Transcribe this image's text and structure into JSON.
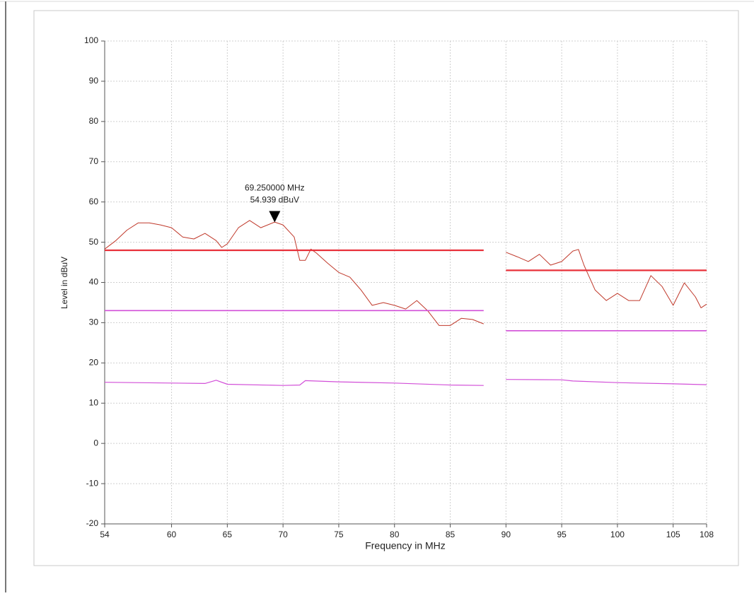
{
  "chart_data": {
    "type": "line",
    "xlabel": "Frequency in MHz",
    "ylabel": "Level in dBuV",
    "xlim": [
      54,
      108
    ],
    "ylim": [
      -20,
      100
    ],
    "xticks": [
      54,
      60,
      65,
      70,
      75,
      80,
      85,
      90,
      95,
      100,
      105,
      108
    ],
    "yticks": [
      -20,
      -10,
      0,
      10,
      20,
      30,
      40,
      50,
      60,
      70,
      80,
      90,
      100
    ],
    "grid": true,
    "series": [
      {
        "color": "#c0392b",
        "width": 1,
        "x": [
          54,
          55,
          56,
          57,
          58,
          59,
          60,
          61,
          62,
          63,
          64,
          64.5,
          65,
          66,
          67,
          68,
          69.25,
          70,
          71,
          71.5,
          72,
          72.5,
          73,
          74,
          75,
          76,
          77,
          78,
          79,
          80,
          81,
          82,
          83,
          84,
          85,
          86,
          87,
          88
        ],
        "values": [
          48.3,
          50.4,
          53,
          54.8,
          54.8,
          54.3,
          53.6,
          51.3,
          50.8,
          52.2,
          50.4,
          48.7,
          49.6,
          53.6,
          55.4,
          53.6,
          55,
          54.3,
          51.3,
          45.5,
          45.5,
          48.3,
          47.3,
          44.8,
          42.5,
          41.3,
          38.1,
          34.3,
          35,
          34.3,
          33.4,
          35.5,
          32.9,
          29.3,
          29.3,
          31.1,
          30.8,
          29.7
        ]
      },
      {
        "color": "#c0392b",
        "width": 1,
        "x": [
          90,
          91,
          92,
          93,
          94,
          95,
          96,
          96.5,
          97,
          98,
          99,
          100,
          101,
          102,
          103,
          104,
          105,
          106,
          107,
          107.5,
          108
        ],
        "values": [
          47.5,
          46.4,
          45.2,
          47,
          44.3,
          45.2,
          47.8,
          48.2,
          44.3,
          38.1,
          35.5,
          37.3,
          35.5,
          35.5,
          41.7,
          39,
          34.3,
          39.9,
          36.4,
          33.7,
          34.6
        ]
      },
      {
        "color": "#e8303a",
        "width": 2.2,
        "x": [
          54,
          88
        ],
        "values": [
          48,
          48
        ]
      },
      {
        "color": "#e8303a",
        "width": 2.2,
        "x": [
          90,
          108
        ],
        "values": [
          43,
          43
        ]
      },
      {
        "color": "#d24fd8",
        "width": 1.6,
        "x": [
          54,
          88
        ],
        "values": [
          33,
          33
        ]
      },
      {
        "color": "#d24fd8",
        "width": 1.6,
        "x": [
          90,
          108
        ],
        "values": [
          28,
          28
        ]
      },
      {
        "color": "#d24fd8",
        "width": 1.2,
        "x": [
          54,
          60,
          63,
          64,
          65,
          70,
          71.5,
          72,
          75,
          80,
          85,
          88
        ],
        "values": [
          15.2,
          15,
          14.9,
          15.7,
          14.7,
          14.4,
          14.5,
          15.6,
          15.3,
          15,
          14.5,
          14.4
        ]
      },
      {
        "color": "#d24fd8",
        "width": 1.2,
        "x": [
          90,
          95,
          96,
          100,
          105,
          108
        ],
        "values": [
          15.9,
          15.8,
          15.5,
          15.1,
          14.8,
          14.6
        ]
      }
    ],
    "annotation": {
      "x": 69.25,
      "y": 54.939,
      "label_x": "69.250000 MHz",
      "label_y": "54.939 dBuV"
    }
  }
}
